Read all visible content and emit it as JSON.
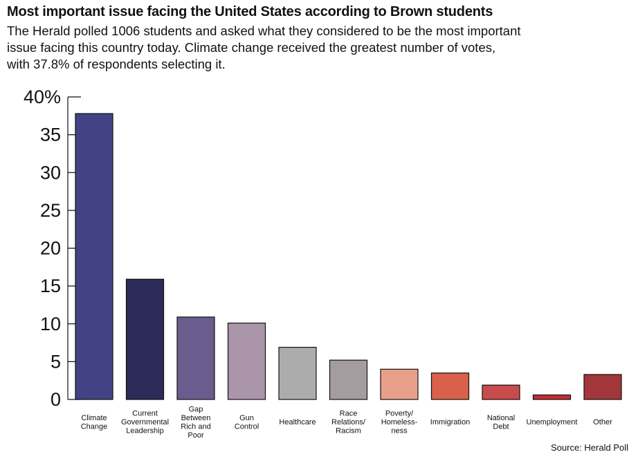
{
  "header": {
    "title": "Most important issue facing the United States according to Brown students",
    "subtitle_lines": [
      "The Herald polled 1006 students and asked what they considered to be the most important",
      "issue facing this country today. Climate change received the greatest number of votes,",
      "with 37.8% of respondents selecting it."
    ]
  },
  "source": "Source: Herald Poll",
  "chart_data": {
    "type": "bar",
    "title": "Most important issue facing the United States according to Brown students",
    "xlabel": "",
    "ylabel": "",
    "ylim": [
      0,
      40
    ],
    "yticks": [
      0,
      5,
      10,
      15,
      20,
      25,
      30,
      35,
      40
    ],
    "ytick_labels": [
      "0",
      "5",
      "10",
      "15",
      "20",
      "25",
      "30",
      "35",
      "40%"
    ],
    "grid": false,
    "categories": [
      [
        "Climate",
        "Change"
      ],
      [
        "Current",
        "Governmental",
        "Leadership"
      ],
      [
        "Gap",
        "Between",
        "Rich and",
        "Poor"
      ],
      [
        "Gun",
        "Control"
      ],
      [
        "Healthcare"
      ],
      [
        "Race",
        "Relations/",
        "Racism"
      ],
      [
        "Poverty/",
        "Homeless-",
        "ness"
      ],
      [
        "Immigration"
      ],
      [
        "National",
        "Debt"
      ],
      [
        "Unemployment"
      ],
      [
        "Other"
      ]
    ],
    "values": [
      37.8,
      15.9,
      10.9,
      10.1,
      6.9,
      5.2,
      4.0,
      3.5,
      1.9,
      0.6,
      3.3
    ],
    "colors": [
      "#434284",
      "#2c2b59",
      "#6b5c8e",
      "#ab95ab",
      "#acacac",
      "#a49c9f",
      "#e8a08a",
      "#d9604a",
      "#c94b4b",
      "#c42d2f",
      "#a3363a"
    ]
  }
}
